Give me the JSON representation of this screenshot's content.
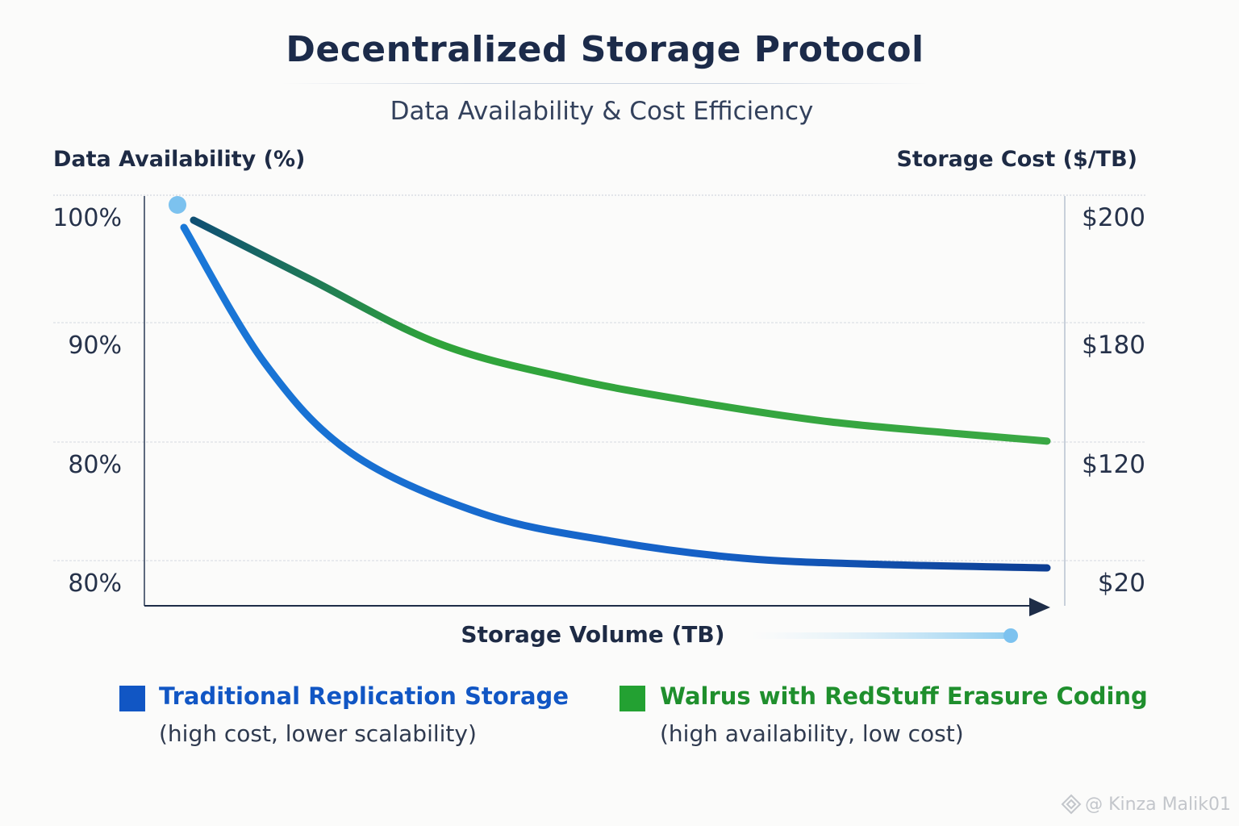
{
  "title": "Decentralized Storage Protocol",
  "subtitle": "Data Availability & Cost Efficiency",
  "watermark": {
    "text": "@ Kinza Malik01",
    "icon": "diamond-logo-icon"
  },
  "colors": {
    "traditional": "#1460c4",
    "walrus": "#2fa33a",
    "accent_dot": "#7cc2ef",
    "text_dark": "#1c2b4a"
  },
  "chart_data": {
    "type": "line",
    "title": "Decentralized Storage Protocol",
    "subtitle": "Data Availability & Cost Efficiency",
    "xlabel": "Storage Volume (TB)",
    "ylabel_left": "Data Availability (%)",
    "ylabel_right": "Storage Cost ($/TB)",
    "left_ticks": [
      "100%",
      "90%",
      "80%",
      "80%"
    ],
    "right_ticks": [
      "$200",
      "$180",
      "$120",
      "$20"
    ],
    "grid": true,
    "x_range": [
      0,
      100
    ],
    "y_ticks_index_range": [
      0,
      3
    ],
    "series": [
      {
        "name": "Traditional Replication Storage",
        "description": "(high cost, lower scalability)",
        "color": "#1460c4",
        "x": [
          0,
          10,
          20,
          35,
          50,
          65,
          80,
          100
        ],
        "y": [
          0.1,
          1.3,
          2.05,
          2.55,
          2.78,
          2.92,
          2.97,
          3.0
        ]
      },
      {
        "name": "Walrus with RedStuff Erasure Coding",
        "description": "(high availability, low cost)",
        "color": "#2fa33a",
        "x": [
          0,
          15,
          30,
          45,
          60,
          75,
          90,
          100
        ],
        "y": [
          0.12,
          0.6,
          1.14,
          1.43,
          1.63,
          1.79,
          1.89,
          1.95
        ]
      }
    ]
  }
}
